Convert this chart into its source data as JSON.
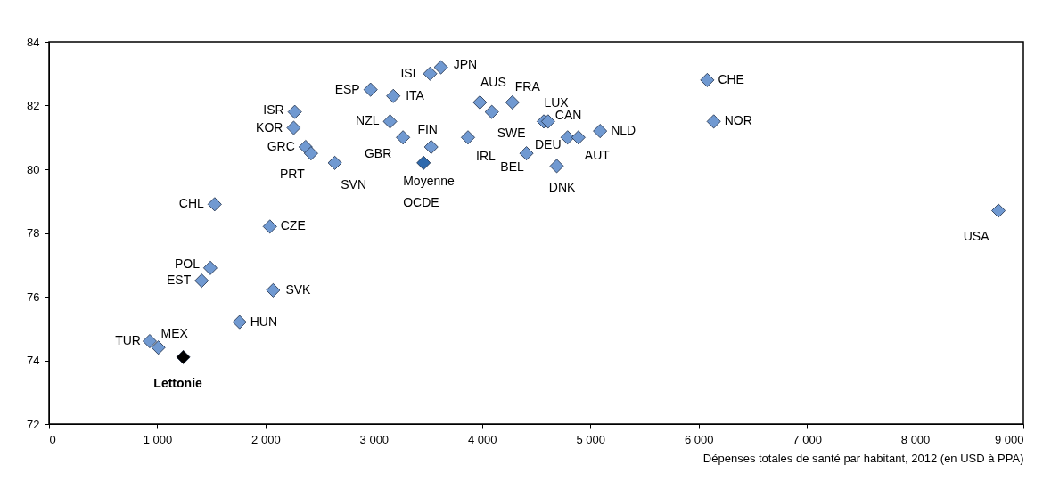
{
  "chart_data": {
    "type": "scatter",
    "xlabel": "Dépenses totales de santé par habitant, 2012 (en USD à PPA)",
    "marker": "diamond",
    "grid": false,
    "xlim": [
      0,
      9000
    ],
    "xticks": [
      0,
      {
        "value": 1000,
        "label": "1 000"
      },
      {
        "value": 2000,
        "label": "2 000"
      },
      {
        "value": 3000,
        "label": "3 000"
      },
      {
        "value": 4000,
        "label": "4 000"
      },
      {
        "value": 5000,
        "label": "5 000"
      },
      {
        "value": 6000,
        "label": "6 000"
      },
      {
        "value": 7000,
        "label": "7 000"
      },
      {
        "value": 8000,
        "label": "8 000"
      },
      {
        "value": 9000,
        "label": "9 000"
      }
    ],
    "ylim": [
      72,
      84
    ],
    "yticks": [
      72,
      74,
      76,
      78,
      80,
      82,
      84
    ],
    "series": [
      {
        "color": "#7099d1",
        "x": [
          930,
          1010,
          1410,
          1490,
          1530,
          1760,
          2040,
          2070,
          2270,
          2260,
          2370,
          2420,
          2640,
          2970,
          3180,
          3150,
          3270,
          3520,
          3620,
          3530,
          3870,
          3980,
          4090,
          4280,
          4410,
          4570,
          4610,
          4790,
          4890,
          5090,
          4690,
          6080,
          6140,
          8770
        ],
        "values": [
          74.6,
          74.4,
          76.5,
          76.9,
          78.9,
          75.2,
          78.2,
          76.2,
          81.8,
          81.3,
          80.7,
          80.5,
          80.2,
          82.5,
          82.3,
          81.5,
          81.0,
          83.0,
          83.2,
          80.7,
          81.0,
          82.1,
          81.8,
          82.1,
          80.5,
          81.5,
          81.5,
          81.0,
          81.0,
          81.2,
          80.1,
          82.8,
          81.5,
          78.7
        ]
      },
      {
        "color": "#2f6aad",
        "x": [
          3460
        ],
        "values": [
          80.2
        ]
      },
      {
        "color": "#000000",
        "x": [
          1240
        ],
        "values": [
          74.1
        ]
      }
    ],
    "annotations": [
      {
        "text": "TUR",
        "x": 930,
        "y": 74.6
      },
      {
        "text": "MEX",
        "x": 1010,
        "y": 74.4
      },
      {
        "text": "Lettonie",
        "x": 1240,
        "y": 74.1
      },
      {
        "text": "EST",
        "x": 1410,
        "y": 76.5
      },
      {
        "text": "POL",
        "x": 1490,
        "y": 76.9
      },
      {
        "text": "CHL",
        "x": 1530,
        "y": 78.9
      },
      {
        "text": "HUN",
        "x": 1760,
        "y": 75.2
      },
      {
        "text": "CZE",
        "x": 2040,
        "y": 78.2
      },
      {
        "text": "SVK",
        "x": 2070,
        "y": 76.2
      },
      {
        "text": "ISR",
        "x": 2270,
        "y": 81.8
      },
      {
        "text": "KOR",
        "x": 2260,
        "y": 81.3
      },
      {
        "text": "GRC",
        "x": 2370,
        "y": 80.7
      },
      {
        "text": "PRT",
        "x": 2420,
        "y": 80.5
      },
      {
        "text": "SVN",
        "x": 2640,
        "y": 80.2
      },
      {
        "text": "ESP",
        "x": 2970,
        "y": 82.5
      },
      {
        "text": "ITA",
        "x": 3180,
        "y": 82.3
      },
      {
        "text": "NZL",
        "x": 3150,
        "y": 81.5
      },
      {
        "text": "GBR",
        "x": 3270,
        "y": 81.0
      },
      {
        "text": "ISL",
        "x": 3520,
        "y": 83.0
      },
      {
        "text": "JPN",
        "x": 3620,
        "y": 83.2
      },
      {
        "text": "FIN",
        "x": 3530,
        "y": 80.7
      },
      {
        "text": "Moyenne OCDE",
        "x": 3460,
        "y": 80.2
      },
      {
        "text": "IRL",
        "x": 3870,
        "y": 81.0
      },
      {
        "text": "AUS",
        "x": 3980,
        "y": 82.1
      },
      {
        "text": "SWE",
        "x": 4090,
        "y": 81.8
      },
      {
        "text": "FRA",
        "x": 4280,
        "y": 82.1
      },
      {
        "text": "BEL",
        "x": 4410,
        "y": 80.5
      },
      {
        "text": "LUX",
        "x": 4570,
        "y": 81.5
      },
      {
        "text": "CAN",
        "x": 4610,
        "y": 81.5
      },
      {
        "text": "DEU",
        "x": 4790,
        "y": 81.0
      },
      {
        "text": "AUT",
        "x": 4890,
        "y": 81.0
      },
      {
        "text": "NLD",
        "x": 5090,
        "y": 81.2
      },
      {
        "text": "DNK",
        "x": 4690,
        "y": 80.1
      },
      {
        "text": "CHE",
        "x": 6080,
        "y": 82.8
      },
      {
        "text": "NOR",
        "x": 6140,
        "y": 81.5
      },
      {
        "text": "USA",
        "x": 8770,
        "y": 78.7
      }
    ]
  }
}
